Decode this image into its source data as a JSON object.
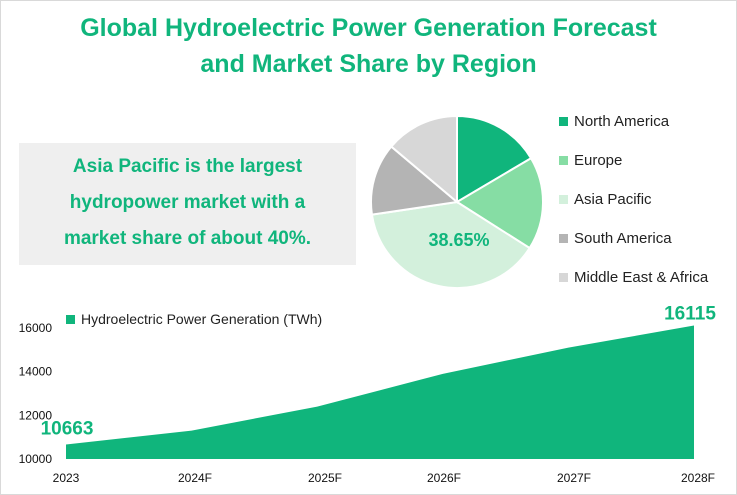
{
  "title_line1": "Global Hydroelectric Power Generation Forecast",
  "title_line2": "and Market Share by Region",
  "callout": {
    "line1": "Asia Pacific is the largest",
    "line2": "hydropower market with a",
    "line3": "market share of about 40%."
  },
  "chart_data": [
    {
      "type": "pie",
      "labels": [
        "North America",
        "Europe",
        "Asia Pacific",
        "South America",
        "Middle East & Africa"
      ],
      "values": [
        16.5,
        17.5,
        38.65,
        13.5,
        13.85
      ],
      "data_labels": {
        "Asia Pacific": "38.65%"
      },
      "colors": [
        "#10b57c",
        "#86dda4",
        "#d3f0dc",
        "#b4b4b4",
        "#d7d7d7"
      ],
      "legend_position": "right"
    },
    {
      "type": "area",
      "series_name": "Hydroelectric Power Generation  (TWh)",
      "categories": [
        "2023",
        "2024F",
        "2025F",
        "2026F",
        "2027F",
        "2028F"
      ],
      "values": [
        10663,
        11300,
        12400,
        13900,
        15100,
        16115
      ],
      "ylim": [
        10000,
        16000
      ],
      "yticks": [
        10000,
        12000,
        14000,
        16000
      ],
      "first_label": "10663",
      "last_label": "16115",
      "color": "#10b57c",
      "legend_position": "top-left",
      "grid": false
    }
  ]
}
